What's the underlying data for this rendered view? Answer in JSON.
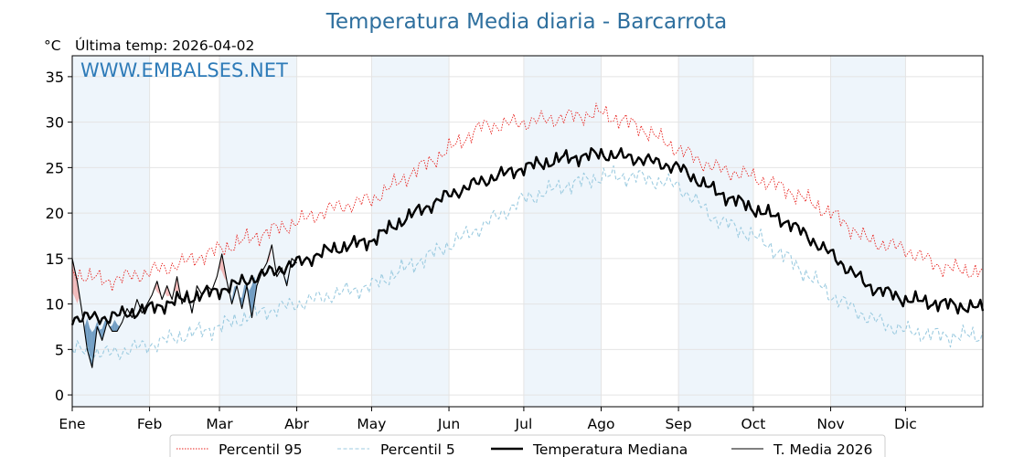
{
  "chart_data": {
    "type": "line",
    "title": "Temperatura Media diaria - Barcarrota",
    "unit": "°C",
    "last_temp_label": "Última temp: 2026-04-02",
    "watermark": "WWW.EMBALSES.NET",
    "x_months": [
      "Ene",
      "Feb",
      "Mar",
      "Abr",
      "May",
      "Jun",
      "Jul",
      "Ago",
      "Sep",
      "Oct",
      "Nov",
      "Dic"
    ],
    "xlim": [
      1,
      366
    ],
    "ylim": [
      -1.3,
      37.3
    ],
    "y_ticks": [
      0,
      5,
      10,
      15,
      20,
      25,
      30,
      35
    ],
    "grid": true,
    "legend_position": "bottom",
    "series": [
      {
        "name": "Percentil 95",
        "style": "dotted",
        "color": "#e8211d",
        "knots": [
          [
            1,
            13.5
          ],
          [
            15,
            12.5
          ],
          [
            32,
            13.5
          ],
          [
            45,
            14.5
          ],
          [
            60,
            16
          ],
          [
            75,
            17.5
          ],
          [
            91,
            19
          ],
          [
            105,
            20.5
          ],
          [
            121,
            21.5
          ],
          [
            135,
            24
          ],
          [
            152,
            27
          ],
          [
            165,
            29.5
          ],
          [
            182,
            30
          ],
          [
            198,
            30.5
          ],
          [
            213,
            31
          ],
          [
            228,
            29.5
          ],
          [
            244,
            27
          ],
          [
            258,
            25
          ],
          [
            274,
            24
          ],
          [
            288,
            22.5
          ],
          [
            305,
            20
          ],
          [
            320,
            17
          ],
          [
            335,
            16
          ],
          [
            350,
            14
          ],
          [
            366,
            13.5
          ]
        ]
      },
      {
        "name": "Percentil 5",
        "style": "dashed",
        "color": "#9ccbe0",
        "knots": [
          [
            1,
            5
          ],
          [
            15,
            4.5
          ],
          [
            32,
            5.5
          ],
          [
            45,
            6.5
          ],
          [
            60,
            7.5
          ],
          [
            75,
            9
          ],
          [
            91,
            10
          ],
          [
            105,
            11
          ],
          [
            121,
            12
          ],
          [
            135,
            14
          ],
          [
            152,
            16.5
          ],
          [
            165,
            18.5
          ],
          [
            182,
            21.5
          ],
          [
            198,
            23
          ],
          [
            213,
            24
          ],
          [
            228,
            24
          ],
          [
            244,
            23
          ],
          [
            258,
            19.5
          ],
          [
            274,
            17.5
          ],
          [
            288,
            15
          ],
          [
            305,
            11
          ],
          [
            320,
            8.5
          ],
          [
            335,
            7
          ],
          [
            350,
            6.5
          ],
          [
            366,
            6.5
          ]
        ]
      },
      {
        "name": "Temperatura Mediana",
        "style": "solid-thick",
        "color": "#000000",
        "knots": [
          [
            1,
            8.5
          ],
          [
            15,
            8.5
          ],
          [
            32,
            9.5
          ],
          [
            45,
            10.5
          ],
          [
            60,
            11.5
          ],
          [
            75,
            13
          ],
          [
            91,
            14.5
          ],
          [
            105,
            16
          ],
          [
            121,
            17
          ],
          [
            135,
            19.5
          ],
          [
            152,
            22
          ],
          [
            165,
            23.5
          ],
          [
            182,
            25
          ],
          [
            198,
            26
          ],
          [
            213,
            26.5
          ],
          [
            228,
            26
          ],
          [
            244,
            25
          ],
          [
            258,
            22.5
          ],
          [
            274,
            20.5
          ],
          [
            288,
            19
          ],
          [
            305,
            15.5
          ],
          [
            320,
            12
          ],
          [
            335,
            10.5
          ],
          [
            350,
            10
          ],
          [
            366,
            9.5
          ]
        ]
      },
      {
        "name": "T. Media 2026",
        "style": "solid-thin",
        "color": "#000000",
        "knots": [
          [
            1,
            15
          ],
          [
            3,
            12.5
          ],
          [
            5,
            9
          ],
          [
            7,
            5
          ],
          [
            9,
            3
          ],
          [
            11,
            7.5
          ],
          [
            13,
            6
          ],
          [
            15,
            8
          ],
          [
            17,
            7
          ],
          [
            19,
            7
          ],
          [
            21,
            8
          ],
          [
            23,
            9.5
          ],
          [
            25,
            8.5
          ],
          [
            27,
            10.5
          ],
          [
            29,
            9
          ],
          [
            31,
            10
          ],
          [
            33,
            11
          ],
          [
            35,
            12.5
          ],
          [
            37,
            10.5
          ],
          [
            39,
            12
          ],
          [
            41,
            10.5
          ],
          [
            43,
            13
          ],
          [
            45,
            10
          ],
          [
            47,
            11.5
          ],
          [
            49,
            9
          ],
          [
            51,
            12
          ],
          [
            53,
            11
          ],
          [
            55,
            12
          ],
          [
            57,
            11.5
          ],
          [
            59,
            13
          ],
          [
            61,
            15.5
          ],
          [
            63,
            12.5
          ],
          [
            65,
            10
          ],
          [
            67,
            12
          ],
          [
            69,
            9.5
          ],
          [
            71,
            12
          ],
          [
            73,
            8.5
          ],
          [
            75,
            12
          ],
          [
            77,
            13.5
          ],
          [
            79,
            14.5
          ],
          [
            81,
            16.5
          ],
          [
            83,
            13
          ],
          [
            85,
            14
          ],
          [
            87,
            12
          ],
          [
            89,
            15
          ],
          [
            91,
            14.5
          ]
        ]
      }
    ]
  }
}
